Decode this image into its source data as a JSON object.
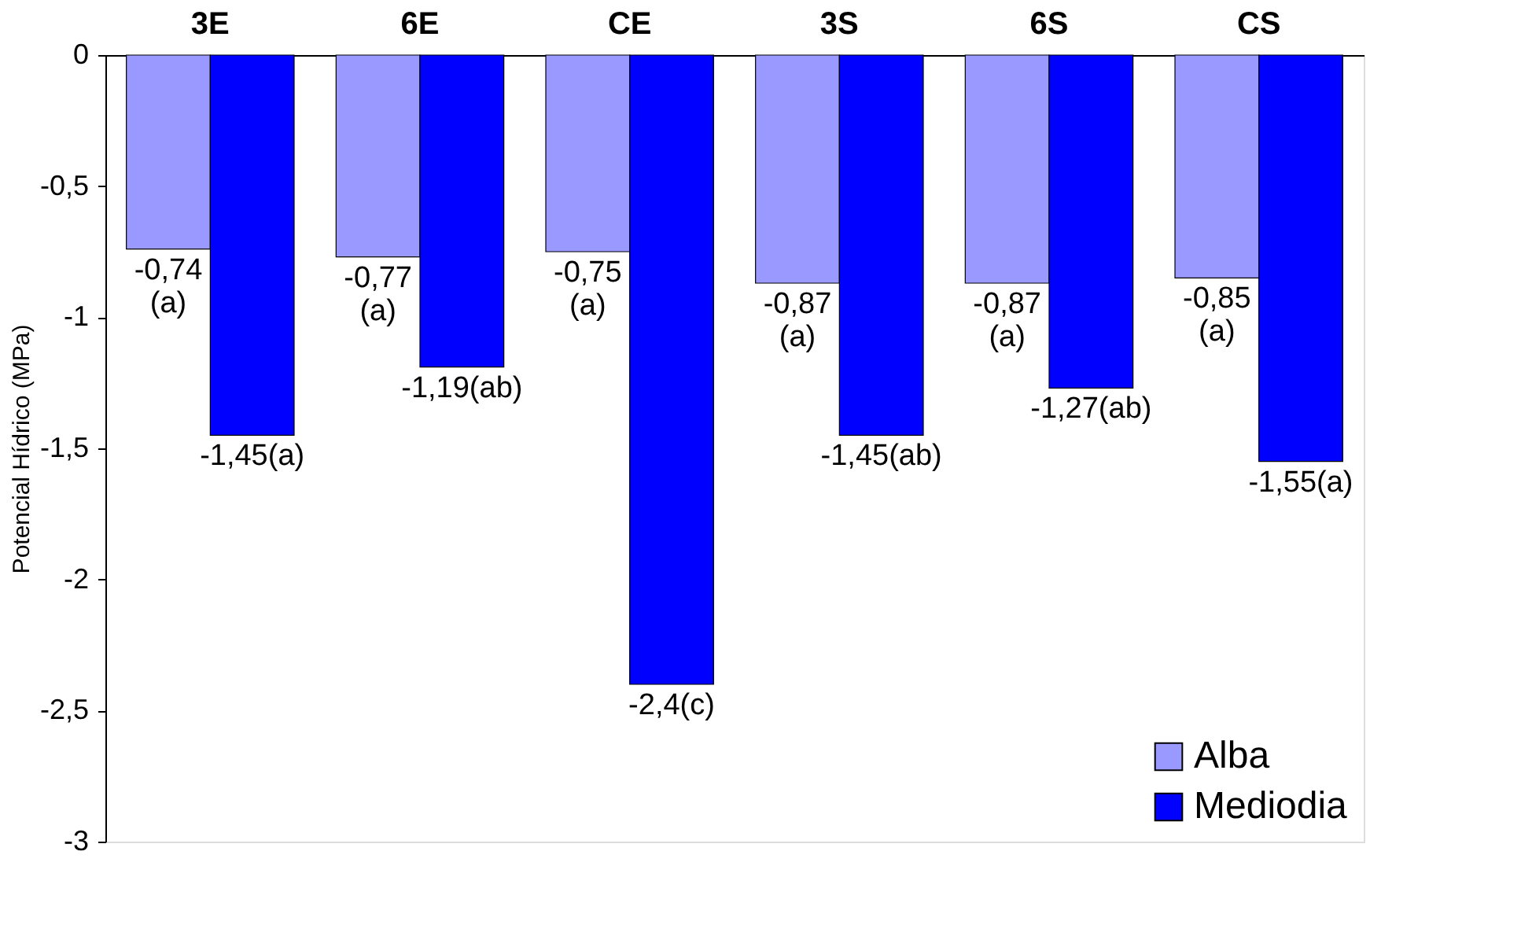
{
  "chart_data": {
    "type": "bar",
    "categories": [
      "3E",
      "6E",
      "CE",
      "3S",
      "6S",
      "CS"
    ],
    "series": [
      {
        "name": "Alba",
        "color": "#9999ff",
        "values": [
          -0.74,
          -0.77,
          -0.75,
          -0.87,
          -0.87,
          -0.85
        ],
        "value_labels": [
          "-0,74\n(a)",
          "-0,77\n(a)",
          "-0,75\n(a)",
          "-0,87\n(a)",
          "-0,87\n(a)",
          "-0,85\n(a)"
        ]
      },
      {
        "name": "Mediodia",
        "color": "#0000ff",
        "values": [
          -1.45,
          -1.19,
          -2.4,
          -1.45,
          -1.27,
          -1.55
        ],
        "value_labels": [
          "-1,45(a)",
          "-1,19(ab)",
          "-2,4(c)",
          "-1,45(ab)",
          "-1,27(ab)",
          "-1,55(a)"
        ]
      }
    ],
    "ylabel": "Potencial Hídrico (MPa)",
    "ylim": [
      -3,
      0
    ],
    "yticks": [
      {
        "value": -3,
        "label": "-3"
      },
      {
        "value": -2.5,
        "label": "-2,5"
      },
      {
        "value": -2,
        "label": "-2"
      },
      {
        "value": -1.5,
        "label": "-1,5"
      },
      {
        "value": -1,
        "label": "-1"
      },
      {
        "value": -0.5,
        "label": "-0,5"
      },
      {
        "value": 0,
        "label": "0"
      }
    ],
    "legend": "bottom right",
    "grid": false
  }
}
